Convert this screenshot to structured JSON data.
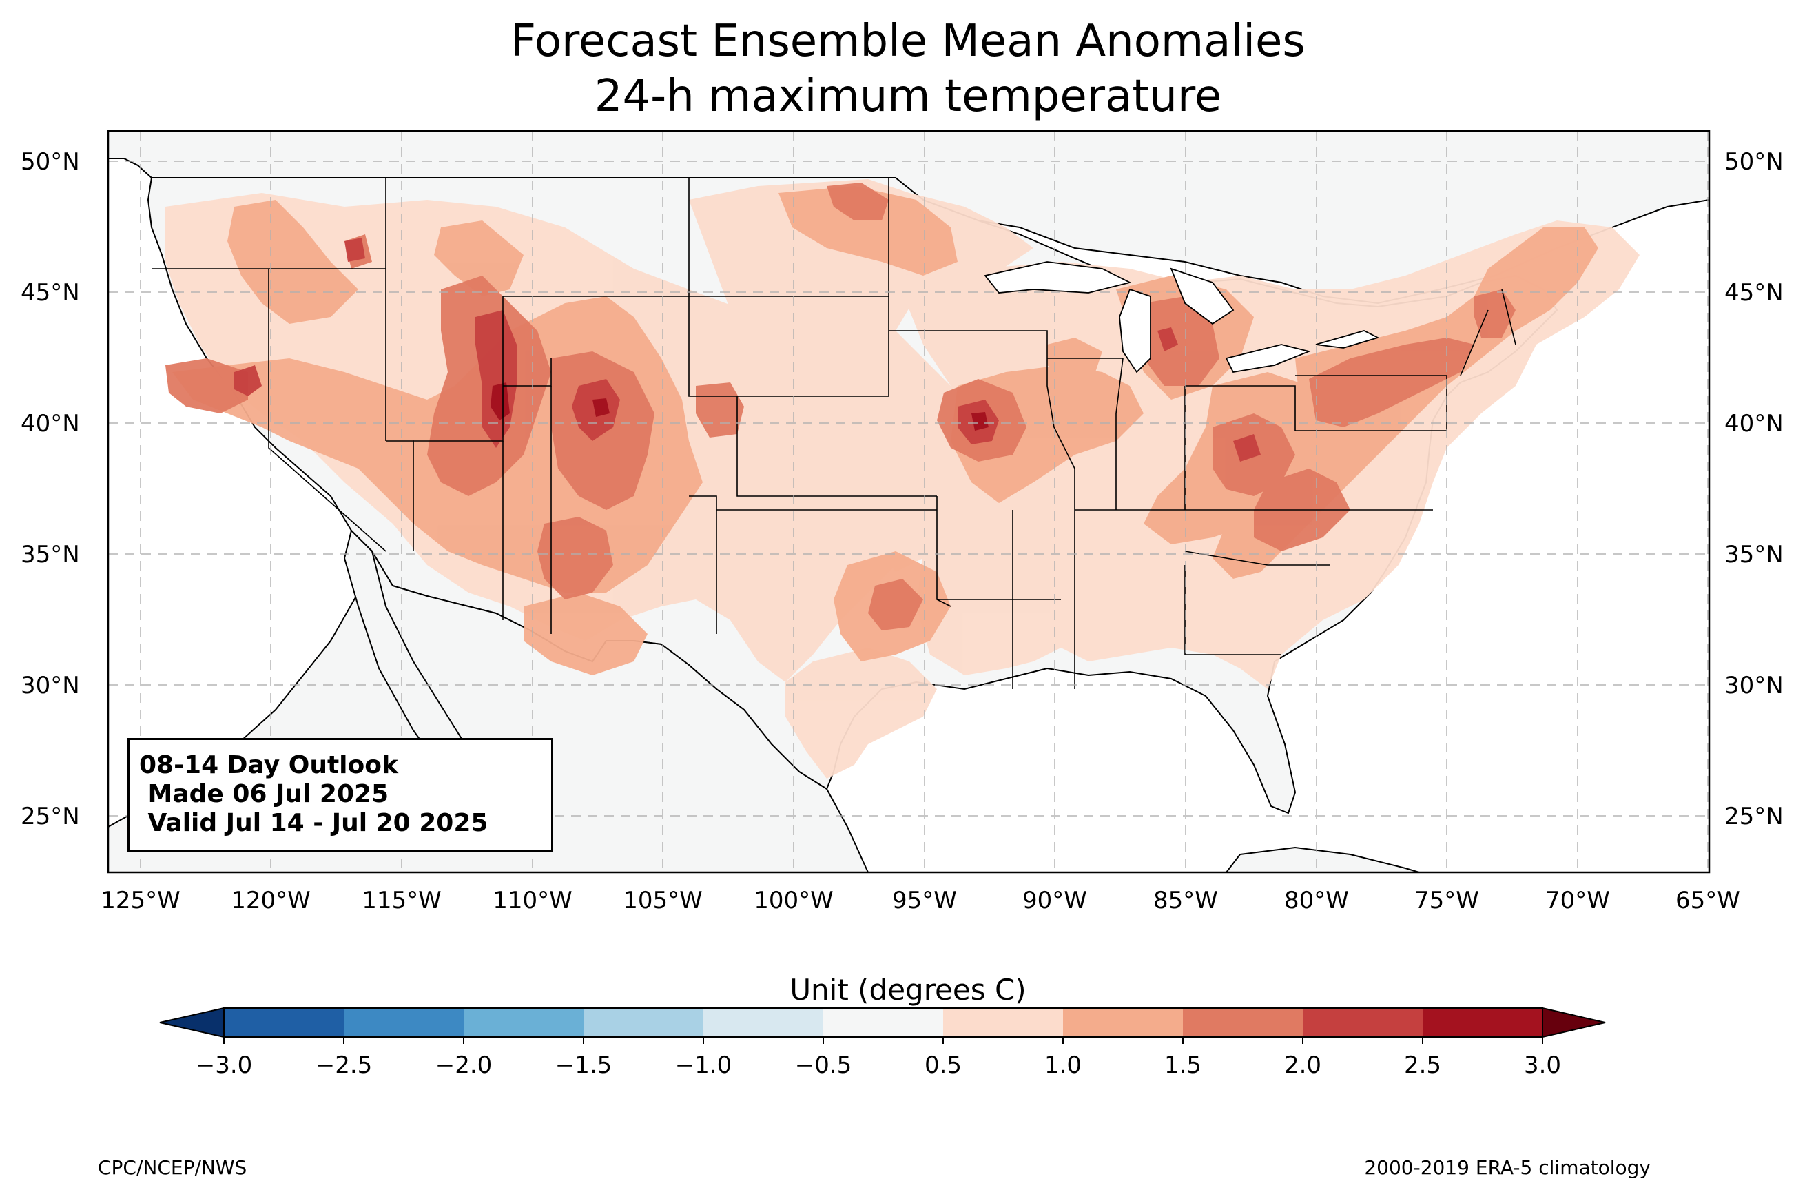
{
  "title": {
    "line1": "Forecast Ensemble Mean Anomalies",
    "line2": "24-h maximum temperature"
  },
  "outlook_box": {
    "line1": "08-14 Day Outlook",
    "line2": " Made 06 Jul 2025",
    "line3": " Valid Jul 14 - Jul 20 2025"
  },
  "axes": {
    "lat_labels": [
      "50°N",
      "45°N",
      "40°N",
      "35°N",
      "30°N",
      "25°N"
    ],
    "lon_labels": [
      "125°W",
      "120°W",
      "115°W",
      "110°W",
      "105°W",
      "100°W",
      "95°W",
      "90°W",
      "85°W",
      "80°W",
      "75°W",
      "70°W",
      "65°W"
    ]
  },
  "colorbar": {
    "label": "Unit (degrees C)",
    "ticks": [
      "−3.0",
      "−2.5",
      "−2.0",
      "−1.5",
      "−1.0",
      "−0.5",
      "0.5",
      "1.0",
      "1.5",
      "2.0",
      "2.5",
      "3.0"
    ],
    "colors": [
      "#08306b",
      "#1f5fa5",
      "#3d89c3",
      "#6ab0d6",
      "#a9d1e5",
      "#d8e8f0",
      "#f5f6f6",
      "#fcdccc",
      "#f4ac8c",
      "#e07a62",
      "#c5403f",
      "#a4121f",
      "#67000d"
    ]
  },
  "footer": {
    "left": "CPC/NCEP/NWS",
    "right": "2000-2019 ERA-5 climatology"
  },
  "colors": {
    "land": "#f5f6f6",
    "anomaly_0_5_1": "#fcdccc",
    "anomaly_1_1_5": "#f4ac8c",
    "anomaly_1_5_2": "#e07a62",
    "anomaly_2_2_5": "#c5403f",
    "anomaly_2_5_3": "#a4121f"
  }
}
